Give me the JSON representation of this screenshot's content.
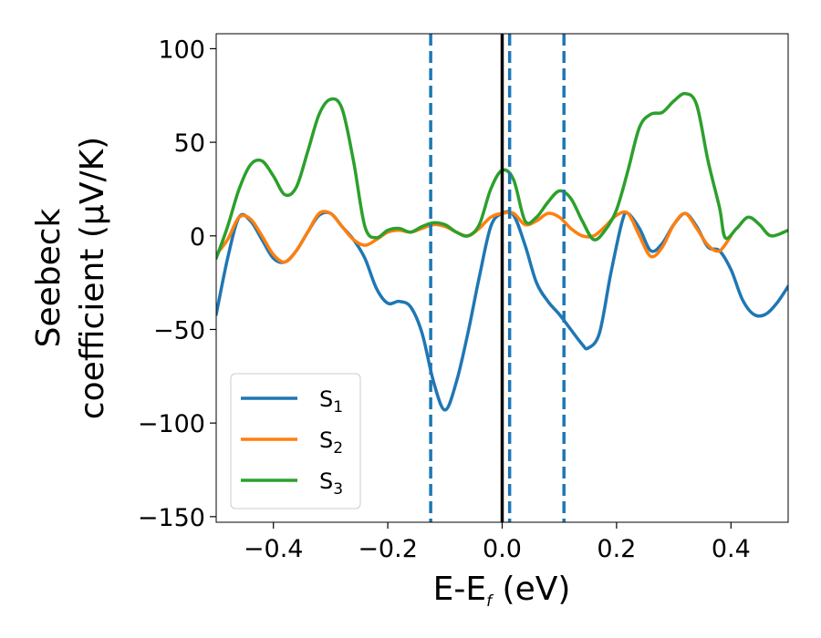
{
  "chart_data": {
    "type": "line",
    "ylabel_line1": "Seebeck",
    "ylabel_line2": "coefficient  (μV/K)",
    "xlabel_main": "E-E",
    "xlabel_sub": "f",
    "xlabel_unit": " (eV)",
    "xlim": [
      -0.5,
      0.5
    ],
    "ylim": [
      -153,
      108
    ],
    "x_ticks": [
      -0.4,
      -0.2,
      0.0,
      0.2,
      0.4
    ],
    "x_tick_labels": [
      "−0.4",
      "−0.2",
      "0.0",
      "0.2",
      "0.4"
    ],
    "y_ticks": [
      100,
      50,
      0,
      -50,
      -100,
      -150
    ],
    "y_tick_labels": [
      "100",
      "50",
      "0",
      "−50",
      "−100",
      "−150"
    ],
    "vlines": [
      {
        "x": 0.0,
        "style": "solid",
        "color": "#000000"
      },
      {
        "x": -0.125,
        "style": "dashed",
        "color": "#1f77b4"
      },
      {
        "x": 0.013,
        "style": "dashed",
        "color": "#1f77b4"
      },
      {
        "x": 0.108,
        "style": "dashed",
        "color": "#1f77b4"
      }
    ],
    "legend_placement": "lower-left",
    "series": [
      {
        "name": "S",
        "name_sub": "1",
        "color": "#1f77b4",
        "points": [
          [
            -0.5,
            -42
          ],
          [
            -0.48,
            -12
          ],
          [
            -0.46,
            10
          ],
          [
            -0.44,
            8
          ],
          [
            -0.42,
            -2
          ],
          [
            -0.4,
            -12
          ],
          [
            -0.38,
            -14
          ],
          [
            -0.36,
            -8
          ],
          [
            -0.34,
            2
          ],
          [
            -0.32,
            11
          ],
          [
            -0.3,
            12
          ],
          [
            -0.28,
            5
          ],
          [
            -0.26,
            -2
          ],
          [
            -0.24,
            -12
          ],
          [
            -0.22,
            -28
          ],
          [
            -0.2,
            -36
          ],
          [
            -0.18,
            -35
          ],
          [
            -0.16,
            -38
          ],
          [
            -0.14,
            -52
          ],
          [
            -0.12,
            -78
          ],
          [
            -0.1,
            -93
          ],
          [
            -0.08,
            -78
          ],
          [
            -0.06,
            -52
          ],
          [
            -0.04,
            -22
          ],
          [
            -0.02,
            5
          ],
          [
            0.0,
            12
          ],
          [
            0.02,
            11
          ],
          [
            0.04,
            -5
          ],
          [
            0.06,
            -25
          ],
          [
            0.08,
            -35
          ],
          [
            0.1,
            -42
          ],
          [
            0.12,
            -50
          ],
          [
            0.14,
            -58
          ],
          [
            0.15,
            -60
          ],
          [
            0.17,
            -52
          ],
          [
            0.19,
            -20
          ],
          [
            0.21,
            8
          ],
          [
            0.22,
            12
          ],
          [
            0.24,
            4
          ],
          [
            0.26,
            -8
          ],
          [
            0.28,
            -4
          ],
          [
            0.3,
            6
          ],
          [
            0.32,
            12
          ],
          [
            0.34,
            5
          ],
          [
            0.36,
            -6
          ],
          [
            0.38,
            -8
          ],
          [
            0.4,
            -18
          ],
          [
            0.42,
            -34
          ],
          [
            0.44,
            -42
          ],
          [
            0.46,
            -42
          ],
          [
            0.48,
            -36
          ],
          [
            0.5,
            -27
          ]
        ]
      },
      {
        "name": "S",
        "name_sub": "2",
        "color": "#ff7f0e",
        "points": [
          [
            -0.5,
            -10
          ],
          [
            -0.48,
            -2
          ],
          [
            -0.46,
            10
          ],
          [
            -0.44,
            9
          ],
          [
            -0.42,
            0
          ],
          [
            -0.4,
            -10
          ],
          [
            -0.38,
            -14
          ],
          [
            -0.36,
            -8
          ],
          [
            -0.34,
            2
          ],
          [
            -0.32,
            12
          ],
          [
            -0.3,
            12
          ],
          [
            -0.28,
            5
          ],
          [
            -0.26,
            -2
          ],
          [
            -0.24,
            -5
          ],
          [
            -0.22,
            -2
          ],
          [
            -0.2,
            2
          ],
          [
            -0.18,
            3
          ],
          [
            -0.16,
            2
          ],
          [
            -0.14,
            4
          ],
          [
            -0.12,
            6
          ],
          [
            -0.1,
            5
          ],
          [
            -0.08,
            2
          ],
          [
            -0.06,
            0
          ],
          [
            -0.04,
            4
          ],
          [
            -0.02,
            10
          ],
          [
            0.0,
            12
          ],
          [
            0.02,
            12
          ],
          [
            0.04,
            6
          ],
          [
            0.06,
            8
          ],
          [
            0.08,
            12
          ],
          [
            0.1,
            10
          ],
          [
            0.12,
            4
          ],
          [
            0.14,
            0
          ],
          [
            0.16,
            0
          ],
          [
            0.18,
            5
          ],
          [
            0.2,
            11
          ],
          [
            0.22,
            12
          ],
          [
            0.24,
            0
          ],
          [
            0.26,
            -11
          ],
          [
            0.28,
            -6
          ],
          [
            0.3,
            6
          ],
          [
            0.32,
            12
          ],
          [
            0.34,
            4
          ],
          [
            0.36,
            -5
          ],
          [
            0.38,
            -8
          ],
          [
            0.4,
            0
          ]
        ]
      },
      {
        "name": "S",
        "name_sub": "3",
        "color": "#2ca02c",
        "points": [
          [
            -0.5,
            -12
          ],
          [
            -0.48,
            5
          ],
          [
            -0.46,
            25
          ],
          [
            -0.44,
            38
          ],
          [
            -0.42,
            40
          ],
          [
            -0.4,
            32
          ],
          [
            -0.38,
            22
          ],
          [
            -0.36,
            26
          ],
          [
            -0.34,
            45
          ],
          [
            -0.32,
            65
          ],
          [
            -0.3,
            73
          ],
          [
            -0.28,
            68
          ],
          [
            -0.26,
            40
          ],
          [
            -0.24,
            5
          ],
          [
            -0.22,
            -1
          ],
          [
            -0.2,
            3
          ],
          [
            -0.18,
            4
          ],
          [
            -0.16,
            2
          ],
          [
            -0.14,
            5
          ],
          [
            -0.12,
            7
          ],
          [
            -0.1,
            6
          ],
          [
            -0.08,
            2
          ],
          [
            -0.06,
            0
          ],
          [
            -0.04,
            6
          ],
          [
            -0.02,
            25
          ],
          [
            0.0,
            35
          ],
          [
            0.02,
            30
          ],
          [
            0.04,
            8
          ],
          [
            0.06,
            10
          ],
          [
            0.08,
            18
          ],
          [
            0.1,
            24
          ],
          [
            0.12,
            20
          ],
          [
            0.14,
            8
          ],
          [
            0.16,
            -2
          ],
          [
            0.18,
            3
          ],
          [
            0.2,
            14
          ],
          [
            0.22,
            35
          ],
          [
            0.24,
            58
          ],
          [
            0.26,
            65
          ],
          [
            0.28,
            66
          ],
          [
            0.3,
            72
          ],
          [
            0.32,
            76
          ],
          [
            0.34,
            70
          ],
          [
            0.36,
            40
          ],
          [
            0.38,
            15
          ],
          [
            0.39,
            -1
          ],
          [
            0.41,
            4
          ],
          [
            0.43,
            10
          ],
          [
            0.45,
            6
          ],
          [
            0.47,
            0
          ],
          [
            0.5,
            3
          ]
        ]
      }
    ]
  }
}
